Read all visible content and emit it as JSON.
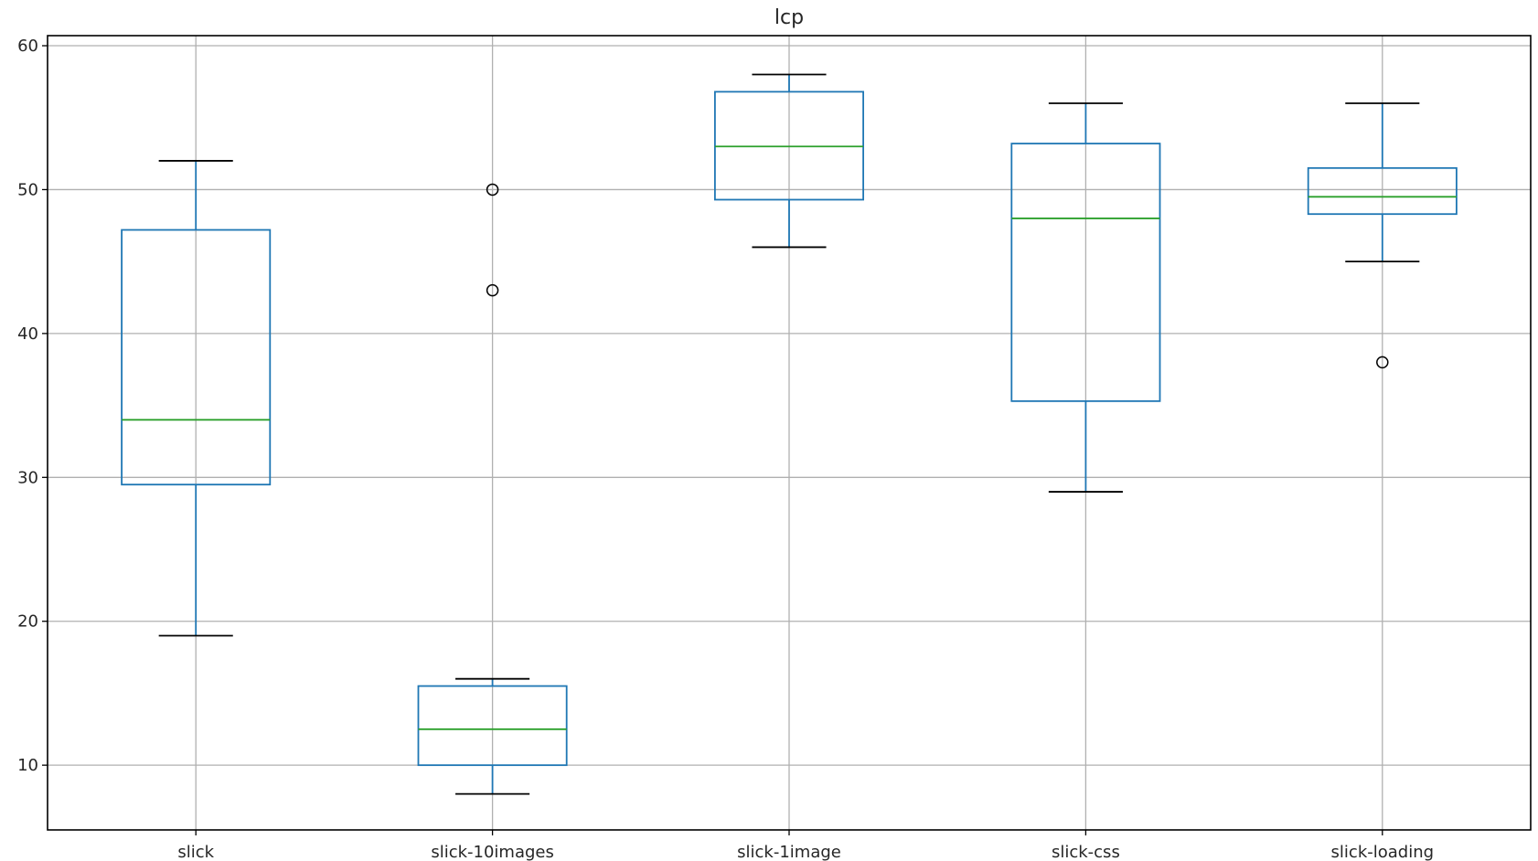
{
  "chart_data": {
    "type": "boxplot",
    "title": "lcp",
    "xlabel": "",
    "ylabel": "",
    "ylim": [
      5.5,
      60.7
    ],
    "yticks": [
      10,
      20,
      30,
      40,
      50,
      60
    ],
    "grid": true,
    "categories": [
      "slick",
      "slick-10images",
      "slick-1image",
      "slick-css",
      "slick-loading"
    ],
    "boxes": [
      {
        "category": "slick",
        "whisker_low": 19,
        "q1": 29.5,
        "median": 34,
        "q3": 47.2,
        "whisker_high": 52,
        "outliers": []
      },
      {
        "category": "slick-10images",
        "whisker_low": 8,
        "q1": 10,
        "median": 12.5,
        "q3": 15.5,
        "whisker_high": 16,
        "outliers": [
          43,
          50
        ]
      },
      {
        "category": "slick-1image",
        "whisker_low": 46,
        "q1": 49.3,
        "median": 53,
        "q3": 56.8,
        "whisker_high": 58,
        "outliers": []
      },
      {
        "category": "slick-css",
        "whisker_low": 29,
        "q1": 35.3,
        "median": 48,
        "q3": 53.2,
        "whisker_high": 56,
        "outliers": []
      },
      {
        "category": "slick-loading",
        "whisker_low": 45,
        "q1": 48.3,
        "median": 49.5,
        "q3": 51.5,
        "whisker_high": 56,
        "outliers": [
          38
        ]
      }
    ],
    "colors": {
      "box": "#1f77b4",
      "median": "#2ca02c",
      "cap": "#000000",
      "outlier": "#000000",
      "grid": "#b0b0b0",
      "axes": "#000000"
    }
  }
}
